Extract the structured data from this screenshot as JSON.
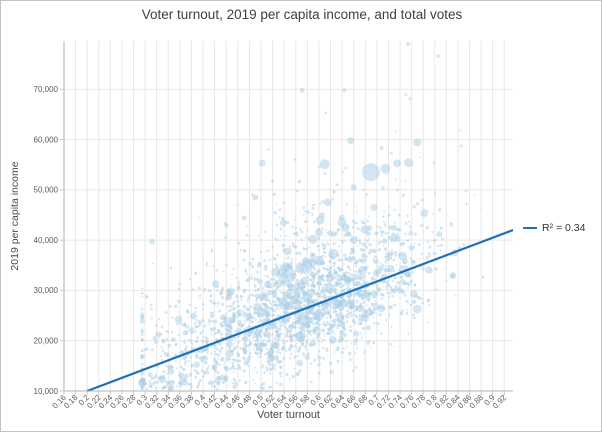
{
  "window": {
    "background": "#ffffff",
    "border_color": "#c3c3c3"
  },
  "chart_data": {
    "type": "scatter",
    "title": "Voter turnout, 2019 per capita income, and total votes",
    "xlabel": "Voter turnout",
    "ylabel": "2019 per capita income",
    "legend": {
      "label": "R² = 0.34",
      "position": "right-of-plot"
    },
    "grid": true,
    "xlim": [
      0.16,
      0.935
    ],
    "ylim": [
      10000,
      79600
    ],
    "x_ticks": [
      0.16,
      0.18,
      0.2,
      0.22,
      0.24,
      0.26,
      0.28,
      0.3,
      0.32,
      0.34,
      0.36,
      0.38,
      0.4,
      0.42,
      0.44,
      0.46,
      0.48,
      0.5,
      0.52,
      0.54,
      0.56,
      0.58,
      0.6,
      0.62,
      0.64,
      0.66,
      0.68,
      0.7,
      0.72,
      0.74,
      0.76,
      0.78,
      0.8,
      0.82,
      0.84,
      0.86,
      0.88,
      0.9,
      0.92
    ],
    "x_tick_labels": [
      "0.16",
      "0.18",
      "0.2",
      "0.22",
      "0.24",
      "0.26",
      "0.28",
      "0.3",
      "0.32",
      "0.34",
      "0.36",
      "0.38",
      "0.4",
      "0.42",
      "0.44",
      "0.46",
      "0.48",
      "0.5",
      "0.52",
      "0.54",
      "0.56",
      "0.58",
      "0.6",
      "0.62",
      "0.64",
      "0.66",
      "0.68",
      "0.7",
      "0.72",
      "0.74",
      "0.76",
      "0.78",
      "0.8",
      "0.82",
      "0.84",
      "0.86",
      "0.88",
      "0.9",
      "0.92"
    ],
    "y_ticks": [
      10000,
      20000,
      30000,
      40000,
      50000,
      60000,
      70000
    ],
    "y_tick_labels": [
      "10,000",
      "20,000",
      "30,000",
      "40,000",
      "50,000",
      "60,000",
      "70,000"
    ],
    "trendline": {
      "x1": 0.2,
      "y1": 10000,
      "x2": 0.935,
      "y2": 42000,
      "r_squared": 0.34,
      "color": "#1f72b8",
      "width": 2.2
    },
    "point_style": {
      "fill": "#a9cee5",
      "opacity": 0.5
    },
    "points_note": "Dense bubble scatter of ~2,400 districts: voter turnout (x) vs 2019 per capita income (y); bubble area encodes total votes. Bulk of points lies between turnout 0.42-0.78 and income 15,000-38,000 with a positive trend (R²=0.34); sparse upper tail reaches ~79,000 income and sparse left tail reaches turnout ~0.30.",
    "notable_points": [
      {
        "x": 0.543,
        "y": 33300,
        "r": 9
      },
      {
        "x": 0.525,
        "y": 33600,
        "r": 4.5
      },
      {
        "x": 0.512,
        "y": 31200,
        "r": 4
      },
      {
        "x": 0.53,
        "y": 31300,
        "r": 4
      },
      {
        "x": 0.57,
        "y": 34500,
        "r": 6
      },
      {
        "x": 0.585,
        "y": 35300,
        "r": 5.5
      },
      {
        "x": 0.6,
        "y": 35900,
        "r": 5
      },
      {
        "x": 0.625,
        "y": 37300,
        "r": 5
      },
      {
        "x": 0.555,
        "y": 30200,
        "r": 5
      },
      {
        "x": 0.573,
        "y": 24300,
        "r": 7
      },
      {
        "x": 0.5,
        "y": 25500,
        "r": 4.5
      },
      {
        "x": 0.69,
        "y": 53500,
        "r": 9
      },
      {
        "x": 0.715,
        "y": 54200,
        "r": 5
      },
      {
        "x": 0.735,
        "y": 55300,
        "r": 4
      },
      {
        "x": 0.755,
        "y": 55400,
        "r": 4.5
      },
      {
        "x": 0.61,
        "y": 55100,
        "r": 5
      },
      {
        "x": 0.502,
        "y": 55300,
        "r": 3.5
      },
      {
        "x": 0.655,
        "y": 59800,
        "r": 3.5
      },
      {
        "x": 0.77,
        "y": 59400,
        "r": 4
      },
      {
        "x": 0.708,
        "y": 58300,
        "r": 2
      },
      {
        "x": 0.782,
        "y": 45400,
        "r": 4
      },
      {
        "x": 0.808,
        "y": 41200,
        "r": 3
      },
      {
        "x": 0.571,
        "y": 69800,
        "r": 2.5
      },
      {
        "x": 0.644,
        "y": 69800,
        "r": 2
      },
      {
        "x": 0.754,
        "y": 79000,
        "r": 2
      },
      {
        "x": 0.806,
        "y": 76600,
        "r": 1.8
      },
      {
        "x": 0.75,
        "y": 68900,
        "r": 1.5
      },
      {
        "x": 0.757,
        "y": 68100,
        "r": 1.5
      },
      {
        "x": 0.49,
        "y": 48500,
        "r": 3
      },
      {
        "x": 0.615,
        "y": 47500,
        "r": 4
      },
      {
        "x": 0.64,
        "y": 43500,
        "r": 4.5
      },
      {
        "x": 0.66,
        "y": 40000,
        "r": 4
      },
      {
        "x": 0.6,
        "y": 41500,
        "r": 4
      },
      {
        "x": 0.58,
        "y": 28500,
        "r": 5
      },
      {
        "x": 0.62,
        "y": 30500,
        "r": 4.5
      },
      {
        "x": 0.65,
        "y": 32000,
        "r": 4
      },
      {
        "x": 0.55,
        "y": 27000,
        "r": 4.5
      },
      {
        "x": 0.52,
        "y": 23000,
        "r": 4
      },
      {
        "x": 0.6,
        "y": 25000,
        "r": 5
      },
      {
        "x": 0.63,
        "y": 27500,
        "r": 4.5
      },
      {
        "x": 0.67,
        "y": 29500,
        "r": 4
      },
      {
        "x": 0.48,
        "y": 21500,
        "r": 3.5
      },
      {
        "x": 0.45,
        "y": 24000,
        "r": 3
      },
      {
        "x": 0.7,
        "y": 33500,
        "r": 4
      },
      {
        "x": 0.72,
        "y": 36500,
        "r": 3.5
      },
      {
        "x": 0.74,
        "y": 30000,
        "r": 3
      },
      {
        "x": 0.68,
        "y": 24500,
        "r": 3.5
      },
      {
        "x": 0.64,
        "y": 21500,
        "r": 3
      },
      {
        "x": 0.59,
        "y": 19500,
        "r": 3
      },
      {
        "x": 0.66,
        "y": 50500,
        "r": 3
      },
      {
        "x": 0.695,
        "y": 46500,
        "r": 3.5
      },
      {
        "x": 0.73,
        "y": 42500,
        "r": 3
      },
      {
        "x": 0.76,
        "y": 38500,
        "r": 3
      }
    ],
    "cloud": {
      "description": "Generation parameters reproducing the dense background point cloud.",
      "seed": 11,
      "n": 2400,
      "x_mean": 0.565,
      "x_sd": 0.105,
      "x_left_skew": 1.25,
      "x_min": 0.295,
      "x_max": 0.928,
      "slope": 43500,
      "x0": 0.2,
      "base": 10000,
      "resid_sd": 5600,
      "pos_skew": 1.15,
      "outlier_prob": 0.07,
      "outlier_base": 6000,
      "outlier_sd": 11000,
      "y_min": 10350,
      "y_max": 72000,
      "size_buckets": [
        {
          "p": 0.86,
          "min": 0.8,
          "max": 1.7
        },
        {
          "p": 0.965,
          "min": 1.7,
          "max": 3.0
        },
        {
          "p": 1.0,
          "min": 3.0,
          "max": 4.6
        }
      ]
    },
    "style": {
      "grid_color": "#e7e7e7",
      "axis_color": "#b3b3b3",
      "tick_color": "#c9c9c9",
      "tick_label_color": "#5a5a5a",
      "title_color": "#404040"
    }
  }
}
